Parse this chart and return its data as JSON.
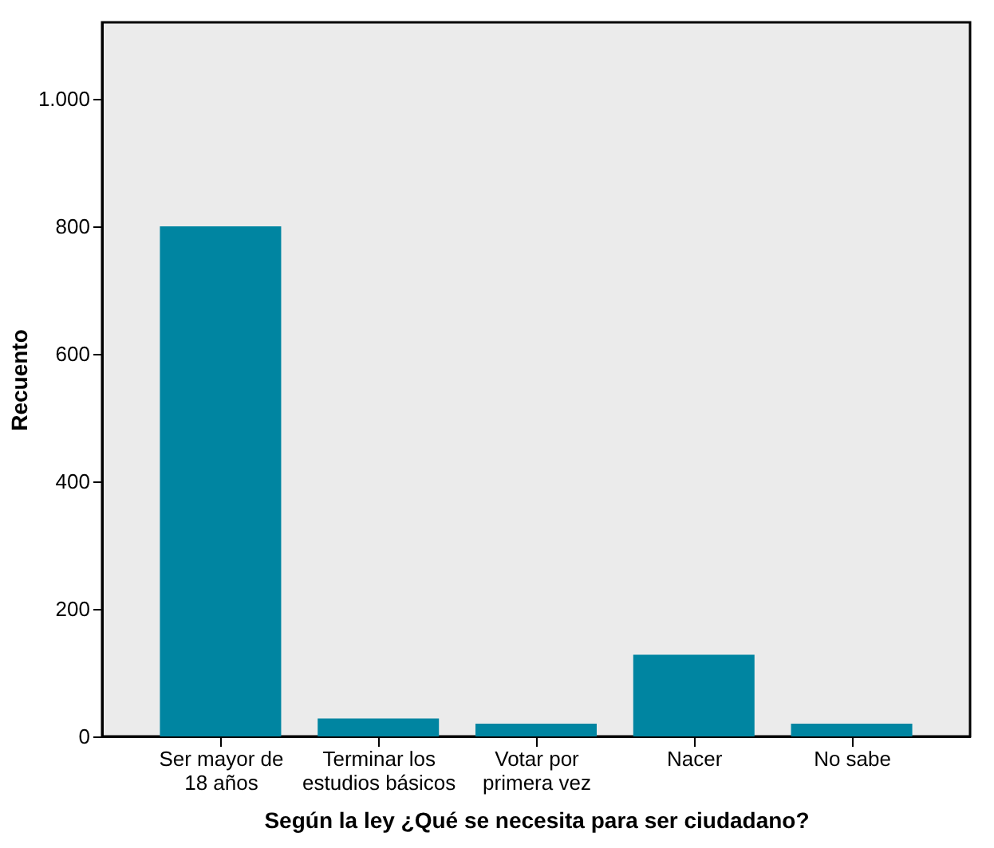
{
  "chart_data": {
    "type": "bar",
    "xlabel": "Según la ley ¿Qué se necesita para ser ciudadano?",
    "ylabel": "Recuento",
    "categories": [
      "Ser mayor de\n18 años",
      "Terminar los\nestudios básicos",
      "Votar por\nprimera vez",
      "Nacer",
      "No sabe"
    ],
    "values": [
      800,
      28,
      20,
      128,
      20
    ],
    "color": "#0085a1",
    "ylim": [
      0,
      1120
    ],
    "yticks": [
      0,
      200,
      400,
      600,
      800,
      {
        "value": 1000,
        "label": "1.000"
      }
    ],
    "grid": false
  }
}
